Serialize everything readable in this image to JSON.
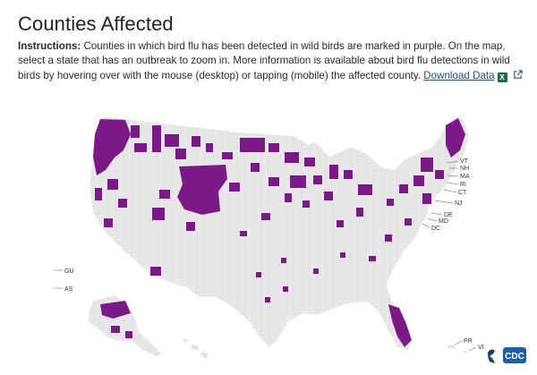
{
  "header": {
    "title": "Counties Affected"
  },
  "instructions": {
    "lead": "Instructions:",
    "body": "Counties in which bird flu has been detected in wild birds are marked in purple. On the map, select a state that has an outbreak to zoom in. More information is available about bird flu detections in wild birds by hovering over with the mouse (desktop) or tapping (mobile) the affected county.",
    "download_label": "Download Data",
    "download_icon": "excel-icon",
    "external_icon": "external-link-icon"
  },
  "map": {
    "colors": {
      "affected": "#7b1a86",
      "unaffected": "#e4e4e4",
      "border": "#ffffff",
      "leader": "#555555"
    },
    "state_callouts": [
      "VT",
      "NH",
      "MA",
      "RI",
      "CT",
      "NJ",
      "DE",
      "MD",
      "DC"
    ],
    "territories": [
      "GU",
      "AS",
      "PR",
      "VI"
    ]
  },
  "branding": {
    "logo_text": "CDC"
  }
}
